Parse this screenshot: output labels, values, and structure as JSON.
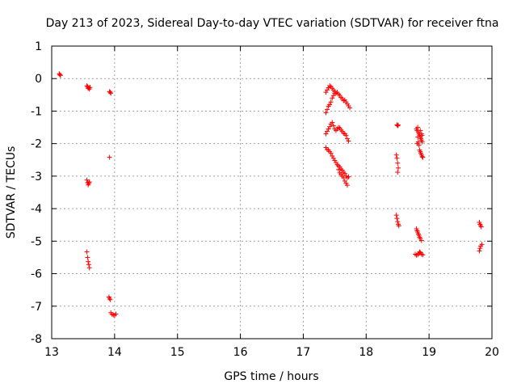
{
  "chart_data": {
    "type": "scatter",
    "title": "Day 213 of 2023, Sidereal Day-to-day VTEC variation (SDTVAR) for receiver ftna",
    "xlabel": "GPS time / hours",
    "ylabel": "SDTVAR / TECUs",
    "xlim": [
      13,
      20
    ],
    "ylim": [
      -8,
      1
    ],
    "xticks": [
      "13",
      "14",
      "15",
      "16",
      "17",
      "18",
      "19",
      "20"
    ],
    "yticks": [
      "1",
      "0",
      "-1",
      "-2",
      "-3",
      "-4",
      "-5",
      "-6",
      "-7",
      "-8"
    ],
    "grid": true,
    "marker": "plus",
    "color": "#ff0000",
    "series": [
      {
        "name": "SDTVAR",
        "points": [
          [
            13.12,
            0.15
          ],
          [
            13.13,
            0.12
          ],
          [
            13.14,
            0.1
          ],
          [
            13.56,
            -0.22
          ],
          [
            13.57,
            -0.25
          ],
          [
            13.58,
            -0.3
          ],
          [
            13.59,
            -0.28
          ],
          [
            13.6,
            -0.32
          ],
          [
            13.61,
            -0.27
          ],
          [
            13.92,
            -0.4
          ],
          [
            13.93,
            -0.42
          ],
          [
            13.94,
            -0.45
          ],
          [
            13.92,
            -2.42
          ],
          [
            13.56,
            -3.12
          ],
          [
            13.57,
            -3.2
          ],
          [
            13.58,
            -3.27
          ],
          [
            13.59,
            -3.22
          ],
          [
            13.6,
            -3.18
          ],
          [
            13.56,
            -5.33
          ],
          [
            13.57,
            -5.5
          ],
          [
            13.58,
            -5.63
          ],
          [
            13.59,
            -5.72
          ],
          [
            13.6,
            -5.82
          ],
          [
            13.91,
            -6.72
          ],
          [
            13.92,
            -6.76
          ],
          [
            13.93,
            -6.8
          ],
          [
            13.94,
            -7.2
          ],
          [
            13.96,
            -7.25
          ],
          [
            13.98,
            -7.27
          ],
          [
            14.0,
            -7.28
          ],
          [
            14.02,
            -7.24
          ],
          [
            17.36,
            -0.42
          ],
          [
            17.38,
            -0.35
          ],
          [
            17.4,
            -0.28
          ],
          [
            17.42,
            -0.22
          ],
          [
            17.44,
            -0.25
          ],
          [
            17.46,
            -0.3
          ],
          [
            17.48,
            -0.35
          ],
          [
            17.5,
            -0.4
          ],
          [
            17.52,
            -0.45
          ],
          [
            17.54,
            -0.42
          ],
          [
            17.56,
            -0.48
          ],
          [
            17.58,
            -0.52
          ],
          [
            17.6,
            -0.58
          ],
          [
            17.62,
            -0.62
          ],
          [
            17.64,
            -0.68
          ],
          [
            17.66,
            -0.66
          ],
          [
            17.68,
            -0.72
          ],
          [
            17.7,
            -0.78
          ],
          [
            17.72,
            -0.84
          ],
          [
            17.74,
            -0.9
          ],
          [
            17.36,
            -1.05
          ],
          [
            17.38,
            -0.95
          ],
          [
            17.4,
            -0.85
          ],
          [
            17.42,
            -0.8
          ],
          [
            17.44,
            -0.72
          ],
          [
            17.46,
            -0.6
          ],
          [
            17.48,
            -0.52
          ],
          [
            17.5,
            -0.45
          ],
          [
            17.36,
            -1.7
          ],
          [
            17.38,
            -1.62
          ],
          [
            17.4,
            -1.55
          ],
          [
            17.42,
            -1.48
          ],
          [
            17.44,
            -1.4
          ],
          [
            17.46,
            -1.35
          ],
          [
            17.48,
            -1.45
          ],
          [
            17.5,
            -1.55
          ],
          [
            17.52,
            -1.6
          ],
          [
            17.54,
            -1.55
          ],
          [
            17.56,
            -1.5
          ],
          [
            17.58,
            -1.52
          ],
          [
            17.6,
            -1.58
          ],
          [
            17.62,
            -1.62
          ],
          [
            17.64,
            -1.68
          ],
          [
            17.66,
            -1.7
          ],
          [
            17.68,
            -1.75
          ],
          [
            17.7,
            -1.85
          ],
          [
            17.72,
            -1.92
          ],
          [
            17.36,
            -2.12
          ],
          [
            17.38,
            -2.18
          ],
          [
            17.4,
            -2.2
          ],
          [
            17.42,
            -2.25
          ],
          [
            17.44,
            -2.3
          ],
          [
            17.46,
            -2.38
          ],
          [
            17.48,
            -2.45
          ],
          [
            17.5,
            -2.52
          ],
          [
            17.52,
            -2.58
          ],
          [
            17.54,
            -2.65
          ],
          [
            17.56,
            -2.68
          ],
          [
            17.58,
            -2.72
          ],
          [
            17.6,
            -2.78
          ],
          [
            17.62,
            -2.82
          ],
          [
            17.64,
            -2.88
          ],
          [
            17.66,
            -2.92
          ],
          [
            17.68,
            -3.0
          ],
          [
            17.7,
            -3.05
          ],
          [
            17.72,
            -3.02
          ],
          [
            17.56,
            -2.8
          ],
          [
            17.58,
            -2.9
          ],
          [
            17.6,
            -2.95
          ],
          [
            17.62,
            -3.0
          ],
          [
            17.64,
            -3.05
          ],
          [
            17.66,
            -3.15
          ],
          [
            17.68,
            -3.22
          ],
          [
            17.7,
            -3.28
          ],
          [
            18.49,
            -1.42
          ],
          [
            18.5,
            -1.45
          ],
          [
            18.51,
            -1.43
          ],
          [
            18.48,
            -2.35
          ],
          [
            18.49,
            -2.45
          ],
          [
            18.5,
            -2.6
          ],
          [
            18.51,
            -2.75
          ],
          [
            18.5,
            -2.88
          ],
          [
            18.48,
            -4.2
          ],
          [
            18.49,
            -4.3
          ],
          [
            18.5,
            -4.4
          ],
          [
            18.51,
            -4.48
          ],
          [
            18.52,
            -4.53
          ],
          [
            18.8,
            -1.55
          ],
          [
            18.81,
            -1.6
          ],
          [
            18.82,
            -1.5
          ],
          [
            18.83,
            -1.65
          ],
          [
            18.84,
            -1.7
          ],
          [
            18.85,
            -1.75
          ],
          [
            18.86,
            -1.8
          ],
          [
            18.87,
            -1.85
          ],
          [
            18.88,
            -1.9
          ],
          [
            18.89,
            -1.95
          ],
          [
            18.82,
            -1.8
          ],
          [
            18.83,
            -1.95
          ],
          [
            18.84,
            -2.05
          ],
          [
            18.85,
            -2.2
          ],
          [
            18.86,
            -2.25
          ],
          [
            18.87,
            -2.3
          ],
          [
            18.88,
            -2.35
          ],
          [
            18.89,
            -2.4
          ],
          [
            18.9,
            -2.42
          ],
          [
            18.81,
            -2.0
          ],
          [
            18.86,
            -1.6
          ],
          [
            18.88,
            -1.7
          ],
          [
            18.89,
            -1.75
          ],
          [
            18.8,
            -4.62
          ],
          [
            18.81,
            -4.68
          ],
          [
            18.82,
            -4.72
          ],
          [
            18.83,
            -4.78
          ],
          [
            18.84,
            -4.82
          ],
          [
            18.85,
            -4.88
          ],
          [
            18.86,
            -4.92
          ],
          [
            18.88,
            -4.98
          ],
          [
            18.78,
            -5.4
          ],
          [
            18.8,
            -5.43
          ],
          [
            18.82,
            -5.42
          ],
          [
            18.84,
            -5.38
          ],
          [
            18.85,
            -5.33
          ],
          [
            18.86,
            -5.35
          ],
          [
            18.88,
            -5.4
          ],
          [
            18.9,
            -5.42
          ],
          [
            19.8,
            -4.42
          ],
          [
            19.81,
            -4.48
          ],
          [
            19.82,
            -4.52
          ],
          [
            19.83,
            -4.56
          ],
          [
            19.8,
            -5.3
          ],
          [
            19.81,
            -5.22
          ],
          [
            19.82,
            -5.15
          ],
          [
            19.84,
            -5.1
          ]
        ]
      }
    ]
  }
}
